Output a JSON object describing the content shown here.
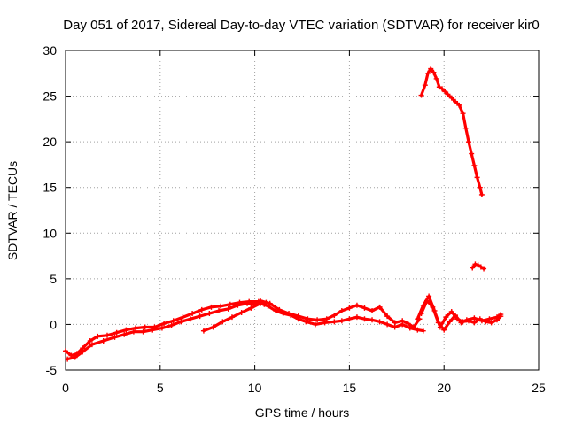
{
  "chart_data": {
    "type": "scatter",
    "title": "Day 051 of 2017, Sidereal Day-to-day VTEC variation (SDTVAR) for receiver kir0",
    "xlabel": "GPS time / hours",
    "ylabel": "SDTVAR / TECUs",
    "xlim": [
      0,
      25
    ],
    "ylim": [
      -5,
      30
    ],
    "xticks": [
      0,
      5,
      10,
      15,
      20,
      25
    ],
    "yticks": [
      -5,
      0,
      5,
      10,
      15,
      20,
      25,
      30
    ],
    "grid": true,
    "marker": "+",
    "series": [
      {
        "name": "SDTVAR",
        "color": "#ff0000",
        "segments": [
          {
            "x": [
              0.0,
              0.3,
              0.6,
              0.9,
              1.3,
              1.7,
              2.2,
              2.7,
              3.2,
              3.7,
              4.2,
              4.7,
              5.2,
              5.7,
              6.2,
              6.7,
              7.2,
              7.7,
              8.2,
              8.7,
              9.2,
              9.7,
              10.2,
              10.6
            ],
            "y": [
              -2.9,
              -3.4,
              -3.2,
              -2.6,
              -1.8,
              -1.3,
              -1.2,
              -0.9,
              -0.6,
              -0.4,
              -0.3,
              -0.3,
              0.1,
              0.4,
              0.8,
              1.2,
              1.6,
              1.9,
              2.0,
              2.2,
              2.4,
              2.5,
              2.5,
              2.4
            ]
          },
          {
            "x": [
              0.1,
              0.5,
              0.9,
              1.4,
              2.0,
              2.6,
              3.1,
              3.6,
              4.1,
              4.6,
              5.1,
              5.6,
              6.1,
              6.6,
              7.1,
              7.6,
              8.1,
              8.6,
              9.1,
              9.6,
              10.1,
              10.5
            ],
            "y": [
              -3.8,
              -3.6,
              -3.0,
              -2.2,
              -1.8,
              -1.4,
              -1.1,
              -0.8,
              -0.8,
              -0.6,
              -0.4,
              -0.1,
              0.3,
              0.6,
              0.9,
              1.2,
              1.5,
              1.7,
              2.1,
              2.3,
              2.3,
              2.2
            ]
          },
          {
            "x": [
              7.3,
              7.8,
              8.3,
              8.8,
              9.3,
              9.8,
              10.3,
              10.7,
              11.1,
              11.5,
              11.9,
              12.3,
              12.7,
              13.2,
              13.7,
              14.2,
              14.6,
              15.0,
              15.4,
              15.8,
              16.2,
              16.6,
              17.0,
              17.4,
              17.8,
              18.2,
              18.6,
              18.9
            ],
            "y": [
              -0.7,
              -0.3,
              0.3,
              0.8,
              1.3,
              1.8,
              2.3,
              2.0,
              1.5,
              1.2,
              1.0,
              0.6,
              0.3,
              0.0,
              0.2,
              0.3,
              0.4,
              0.6,
              0.8,
              0.6,
              0.5,
              0.3,
              0.0,
              -0.3,
              0.0,
              -0.4,
              -0.6,
              -0.7
            ]
          },
          {
            "x": [
              10.3,
              10.8,
              11.3,
              11.8,
              12.3,
              12.8,
              13.3,
              13.8,
              14.2,
              14.6,
              15.0,
              15.4,
              15.8,
              16.2,
              16.6,
              17.0,
              17.4,
              17.8,
              18.1,
              18.4,
              18.7
            ],
            "y": [
              2.6,
              2.3,
              1.6,
              1.2,
              0.9,
              0.6,
              0.5,
              0.6,
              1.0,
              1.5,
              1.8,
              2.1,
              1.8,
              1.5,
              1.9,
              0.9,
              0.2,
              0.4,
              0.1,
              -0.3,
              0.6
            ]
          },
          {
            "x": [
              18.6,
              18.9,
              19.2,
              19.5,
              19.8,
              20.1,
              20.4,
              20.7,
              21.0,
              21.3,
              21.6,
              21.9,
              22.2,
              22.5,
              22.8,
              23.0
            ],
            "y": [
              0.6,
              2.1,
              3.1,
              1.5,
              -0.3,
              0.8,
              1.4,
              0.6,
              0.3,
              0.4,
              0.2,
              0.6,
              0.3,
              0.2,
              0.5,
              0.9
            ]
          },
          {
            "x": [
              18.8,
              19.1,
              19.4,
              19.7,
              20.0,
              20.3,
              20.6,
              20.9,
              21.2,
              21.6,
              22.0,
              22.4,
              22.8,
              23.0
            ],
            "y": [
              1.2,
              2.6,
              1.9,
              0.2,
              -0.6,
              0.3,
              1.0,
              0.2,
              0.5,
              0.7,
              0.4,
              0.6,
              0.8,
              1.1
            ]
          },
          {
            "x": [
              18.8,
              19.0,
              19.15,
              19.3,
              19.45,
              19.6,
              19.75,
              19.9,
              20.05,
              20.2,
              20.4,
              20.6,
              20.8,
              21.0,
              21.15,
              21.3,
              21.45,
              21.6,
              21.75,
              21.9,
              22.0
            ],
            "y": [
              25.1,
              26.2,
              27.5,
              28.0,
              27.6,
              26.9,
              26.0,
              25.8,
              25.5,
              25.2,
              24.8,
              24.4,
              24.0,
              23.1,
              21.5,
              20.0,
              18.7,
              17.4,
              16.1,
              15.0,
              14.2
            ]
          },
          {
            "x": [
              21.5,
              21.65,
              21.8,
              21.95,
              22.1
            ],
            "y": [
              6.2,
              6.6,
              6.5,
              6.3,
              6.1
            ]
          }
        ]
      }
    ]
  }
}
